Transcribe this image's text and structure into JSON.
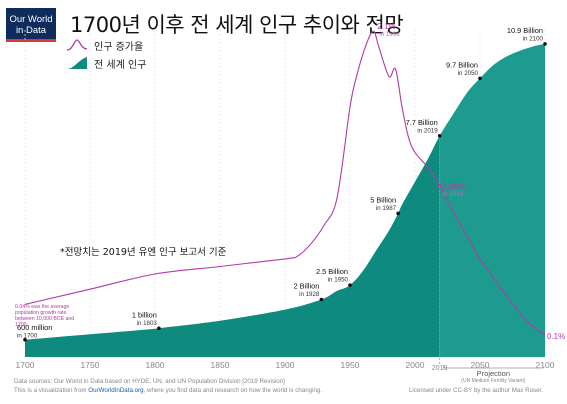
{
  "logo": {
    "line1": "Our World",
    "line2": "in Data"
  },
  "title": "1700년 이후 전 세계 인구 추이와 전망",
  "legend": {
    "growth_label": "인구 증가율",
    "population_label": "전 세계 인구"
  },
  "note": "*전망치는 2019년 유엔 인구 보고서 기준",
  "footer": {
    "line1": "Data sources: Our World in Data based on HYDE, UN, and UN Population Division [2019 Revision]",
    "line2_pre": "This is a visualization from",
    "line2_link": "OurWorldInData.org",
    "line2_post": ", where you find data and research on how the world is changing.",
    "license": "Licensed under CC-BY by the author Max Roser."
  },
  "colors": {
    "population": "#0e8a7f",
    "growth": "#b23aa7",
    "projection": "#1d9b8f"
  },
  "chart_data": {
    "type": "area",
    "xlim": [
      1700,
      2100
    ],
    "ylim": [
      0,
      11
    ],
    "x_ticks": [
      1700,
      1750,
      1800,
      1850,
      1900,
      1950,
      2000,
      2019,
      2050,
      2100
    ],
    "projection_start": 2019,
    "projection_label": "Projection",
    "projection_sub": "(UN Medium Fertility Variant)",
    "series": [
      {
        "name": "전 세계 인구",
        "unit": "billion",
        "x": [
          1700,
          1750,
          1800,
          1803,
          1850,
          1900,
          1928,
          1940,
          1950,
          1960,
          1970,
          1980,
          1987,
          1990,
          2000,
          2010,
          2019,
          2030,
          2040,
          2050,
          2060,
          2070,
          2080,
          2090,
          2100
        ],
        "values": [
          0.6,
          0.79,
          0.98,
          1.0,
          1.26,
          1.65,
          2.0,
          2.3,
          2.5,
          3.0,
          3.7,
          4.4,
          5.0,
          5.3,
          6.1,
          6.9,
          7.7,
          8.5,
          9.2,
          9.7,
          10.15,
          10.45,
          10.65,
          10.8,
          10.9
        ]
      },
      {
        "name": "인구 증가율",
        "unit": "percent",
        "x": [
          1700,
          1750,
          1800,
          1850,
          1900,
          1910,
          1920,
          1930,
          1940,
          1950,
          1955,
          1962,
          1968,
          1972,
          1980,
          1985,
          1990,
          1995,
          2000,
          2010,
          2019,
          2030,
          2040,
          2050,
          2060,
          2070,
          2080,
          2090,
          2100
        ],
        "values": [
          0.3,
          0.4,
          0.5,
          0.55,
          0.6,
          0.62,
          0.7,
          0.82,
          1.0,
          1.6,
          1.8,
          2.0,
          2.1,
          2.0,
          1.8,
          1.85,
          1.6,
          1.4,
          1.3,
          1.2,
          1.08,
          0.9,
          0.75,
          0.6,
          0.48,
          0.36,
          0.25,
          0.16,
          0.1
        ]
      }
    ],
    "population_annotations": [
      {
        "x": 1700,
        "value": "600 million",
        "sub": "in 1700"
      },
      {
        "x": 1803,
        "value": "1 billion",
        "sub": "in 1803"
      },
      {
        "x": 1928,
        "value": "2 Billion",
        "sub": "in 1928"
      },
      {
        "x": 1950,
        "value": "2.5 Billion",
        "sub": "in 1950"
      },
      {
        "x": 1987,
        "value": "5 Billion",
        "sub": "in 1987"
      },
      {
        "x": 2019,
        "value": "7.7 Billion",
        "sub": "in 2019"
      },
      {
        "x": 2050,
        "value": "9.7 Billion",
        "sub": "in 2050"
      },
      {
        "x": 2100,
        "value": "10.9 Billion",
        "sub": "in 2100"
      }
    ],
    "growth_annotations": [
      {
        "x": 1968,
        "value": "2.1%",
        "sub": "in 1968"
      },
      {
        "x": 2019,
        "value": "1.08%",
        "sub": "in 2019"
      },
      {
        "x": 2100,
        "value": "0.1%",
        "sub": ""
      }
    ],
    "early_growth_note": "0.04% was the average population growth rate between 10,000 BCE and 1700"
  }
}
